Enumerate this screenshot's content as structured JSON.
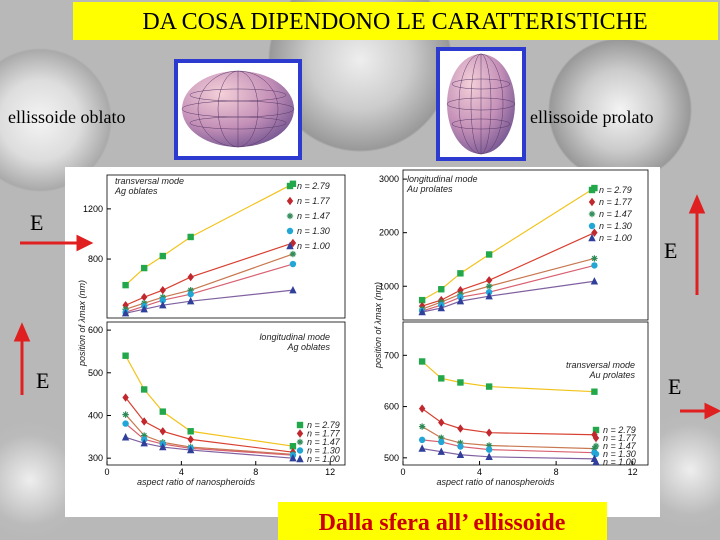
{
  "header": {
    "title": "DA COSA DIPENDONO LE CARATTERISTICHE"
  },
  "shapes": {
    "oblate": "ellissoide oblato",
    "prolate": "ellissoide prolato"
  },
  "field_labels": [
    "E",
    "E",
    "E",
    "E"
  ],
  "caption": "Dalla sfera all’ ellissoide",
  "chart_data": [
    {
      "type": "line",
      "title": "transversal mode",
      "subtitle": "Ag oblates",
      "ylabel": "position of λmax (nm)",
      "x": [
        1,
        2,
        3,
        4.5,
        10
      ],
      "xlim": [
        0,
        12.8
      ],
      "ylim": [
        330,
        1470
      ],
      "yticks": [
        800,
        1200
      ],
      "series": [
        {
          "name": "n = 2.79",
          "color": "#22a84a",
          "line_color": "#f2c31c",
          "marker": "square",
          "values": [
            592,
            728,
            824,
            976,
            1400
          ]
        },
        {
          "name": "n = 1.77",
          "color": "#c0282e",
          "line_color": "#d84030",
          "marker": "diamond",
          "values": [
            432,
            496,
            552,
            656,
            928
          ]
        },
        {
          "name": "n = 1.47",
          "color": "#2e8b57",
          "line_color": "#c87850",
          "marker": "star",
          "values": [
            400,
            448,
            496,
            552,
            840
          ]
        },
        {
          "name": "n = 1.30",
          "color": "#21a6d6",
          "line_color": "#d86070",
          "marker": "circle",
          "values": [
            376,
            424,
            472,
            520,
            760
          ]
        },
        {
          "name": "n = 1.00",
          "color": "#2f3f9a",
          "line_color": "#8060a0",
          "marker": "triangle",
          "values": [
            368,
            400,
            432,
            464,
            552
          ]
        }
      ]
    },
    {
      "type": "line",
      "title": "longitudinal mode",
      "subtitle": "Ag oblates",
      "xlabel": "aspect ratio of nanospheroids",
      "x": [
        1,
        2,
        3,
        4.5,
        10
      ],
      "xlim": [
        0,
        12.8
      ],
      "ylim": [
        284,
        619
      ],
      "yticks": [
        300,
        400,
        500,
        600
      ],
      "xticks": [
        0,
        4,
        8,
        12
      ],
      "series": [
        {
          "name": "n = 2.79",
          "color": "#22a84a",
          "line_color": "#f2c31c",
          "marker": "square",
          "values": [
            540,
            461,
            409,
            363,
            328
          ]
        },
        {
          "name": "n = 1.77",
          "color": "#c0282e",
          "line_color": "#d84030",
          "marker": "diamond",
          "values": [
            442,
            386,
            363,
            344,
            314
          ]
        },
        {
          "name": "n = 1.47",
          "color": "#2e8b57",
          "line_color": "#c87850",
          "marker": "star",
          "values": [
            402,
            353,
            337,
            326,
            309
          ]
        },
        {
          "name": "n = 1.30",
          "color": "#21a6d6",
          "line_color": "#d86070",
          "marker": "circle",
          "values": [
            381,
            344,
            333,
            323,
            307
          ]
        },
        {
          "name": "n = 1.00",
          "color": "#2f3f9a",
          "line_color": "#8060a0",
          "marker": "triangle",
          "values": [
            349,
            335,
            326,
            319,
            300
          ]
        }
      ]
    },
    {
      "type": "line",
      "title": "longitudinal mode",
      "subtitle": "Au prolates",
      "ylabel": "position of λmax (nm)",
      "x": [
        1,
        2,
        3,
        4.5,
        10
      ],
      "xlim": [
        0,
        12.8
      ],
      "ylim": [
        370,
        3170
      ],
      "yticks": [
        1000,
        2000,
        3000
      ],
      "series": [
        {
          "name": "n = 2.79",
          "color": "#22a84a",
          "line_color": "#f2c31c",
          "marker": "square",
          "values": [
            741,
            944,
            1241,
            1593,
            2833
          ]
        },
        {
          "name": "n = 1.77",
          "color": "#c0282e",
          "line_color": "#d84030",
          "marker": "diamond",
          "values": [
            630,
            741,
            926,
            1111,
            2000
          ]
        },
        {
          "name": "n = 1.47",
          "color": "#2e8b57",
          "line_color": "#c87850",
          "marker": "star",
          "values": [
            574,
            704,
            852,
            1000,
            1519
          ]
        },
        {
          "name": "n = 1.30",
          "color": "#21a6d6",
          "line_color": "#d86070",
          "marker": "circle",
          "values": [
            537,
            648,
            796,
            889,
            1389
          ]
        },
        {
          "name": "n = 1.00",
          "color": "#2f3f9a",
          "line_color": "#8060a0",
          "marker": "triangle",
          "values": [
            519,
            593,
            722,
            815,
            1093
          ]
        }
      ]
    },
    {
      "type": "line",
      "title": "transversal mode",
      "subtitle": "Au prolates",
      "xlabel": "aspect ratio of nanospheroids",
      "x": [
        1,
        2,
        3,
        4.5,
        10
      ],
      "xlim": [
        0,
        12.8
      ],
      "ylim": [
        486,
        765
      ],
      "yticks": [
        500,
        600,
        700
      ],
      "xticks": [
        0,
        4,
        8,
        12
      ],
      "series": [
        {
          "name": "n = 2.79",
          "color": "#22a84a",
          "line_color": "#f2c31c",
          "marker": "square",
          "values": [
            688,
            655,
            647,
            639,
            629
          ]
        },
        {
          "name": "n = 1.77",
          "color": "#c0282e",
          "line_color": "#d84030",
          "marker": "diamond",
          "values": [
            596,
            569,
            557,
            549,
            545
          ]
        },
        {
          "name": "n = 1.47",
          "color": "#2e8b57",
          "line_color": "#c87850",
          "marker": "star",
          "values": [
            561,
            539,
            529,
            524,
            518
          ]
        },
        {
          "name": "n = 1.30",
          "color": "#21a6d6",
          "line_color": "#d86070",
          "marker": "circle",
          "values": [
            535,
            531,
            522,
            516,
            510
          ]
        },
        {
          "name": "n = 1.00",
          "color": "#2f3f9a",
          "line_color": "#8060a0",
          "marker": "triangle",
          "values": [
            518,
            512,
            506,
            502,
            498
          ]
        }
      ]
    }
  ]
}
